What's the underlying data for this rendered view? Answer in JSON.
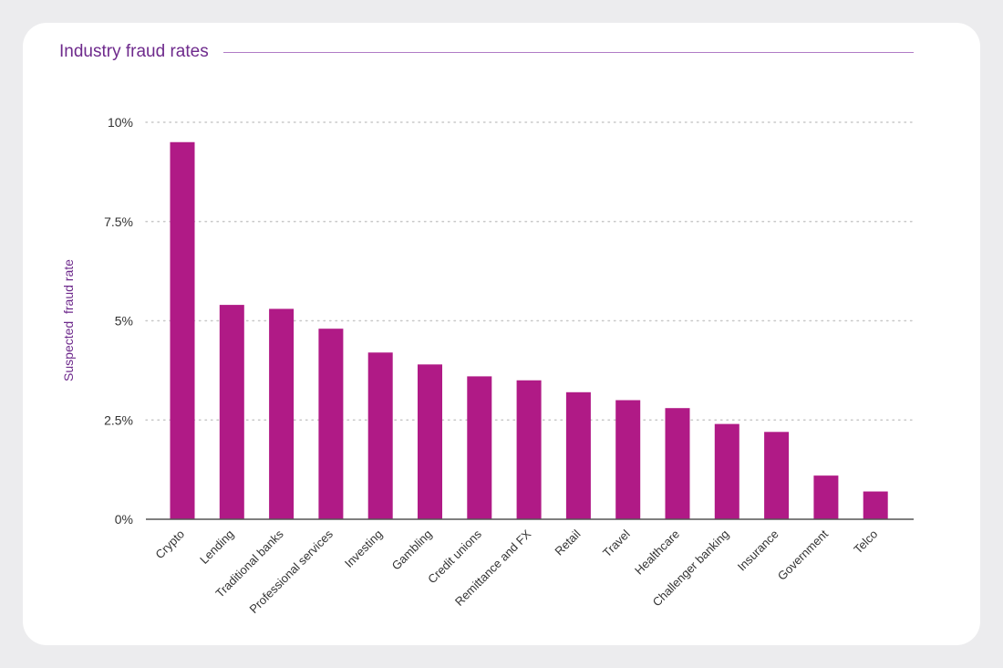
{
  "card": {
    "title": "Industry fraud rates"
  },
  "colors": {
    "bar": "#b01a86",
    "accent": "#6e2a8c",
    "grid": "#c8c8c8",
    "axis": "#555555",
    "text": "#333333"
  },
  "chart_data": {
    "type": "bar",
    "title": "Industry fraud rates",
    "xlabel": "",
    "ylabel": "Suspected  fraud rate",
    "ylim": [
      0,
      10
    ],
    "grid": true,
    "yticks": [
      {
        "value": 0,
        "label": "0%"
      },
      {
        "value": 2.5,
        "label": "2.5%"
      },
      {
        "value": 5,
        "label": "5%"
      },
      {
        "value": 7.5,
        "label": "7.5%"
      },
      {
        "value": 10,
        "label": "10%"
      }
    ],
    "categories": [
      "Crypto",
      "Lending",
      "Traditional banks",
      "Professional services",
      "Investing",
      "Gambling",
      "Credit unions",
      "Remittance and FX",
      "Retail",
      "Travel",
      "Healthcare",
      "Challenger banking",
      "Insurance",
      "Government",
      "Telco"
    ],
    "values": [
      9.5,
      5.4,
      5.3,
      4.8,
      4.2,
      3.9,
      3.6,
      3.5,
      3.2,
      3.0,
      2.8,
      2.4,
      2.2,
      1.1,
      0.7
    ]
  }
}
